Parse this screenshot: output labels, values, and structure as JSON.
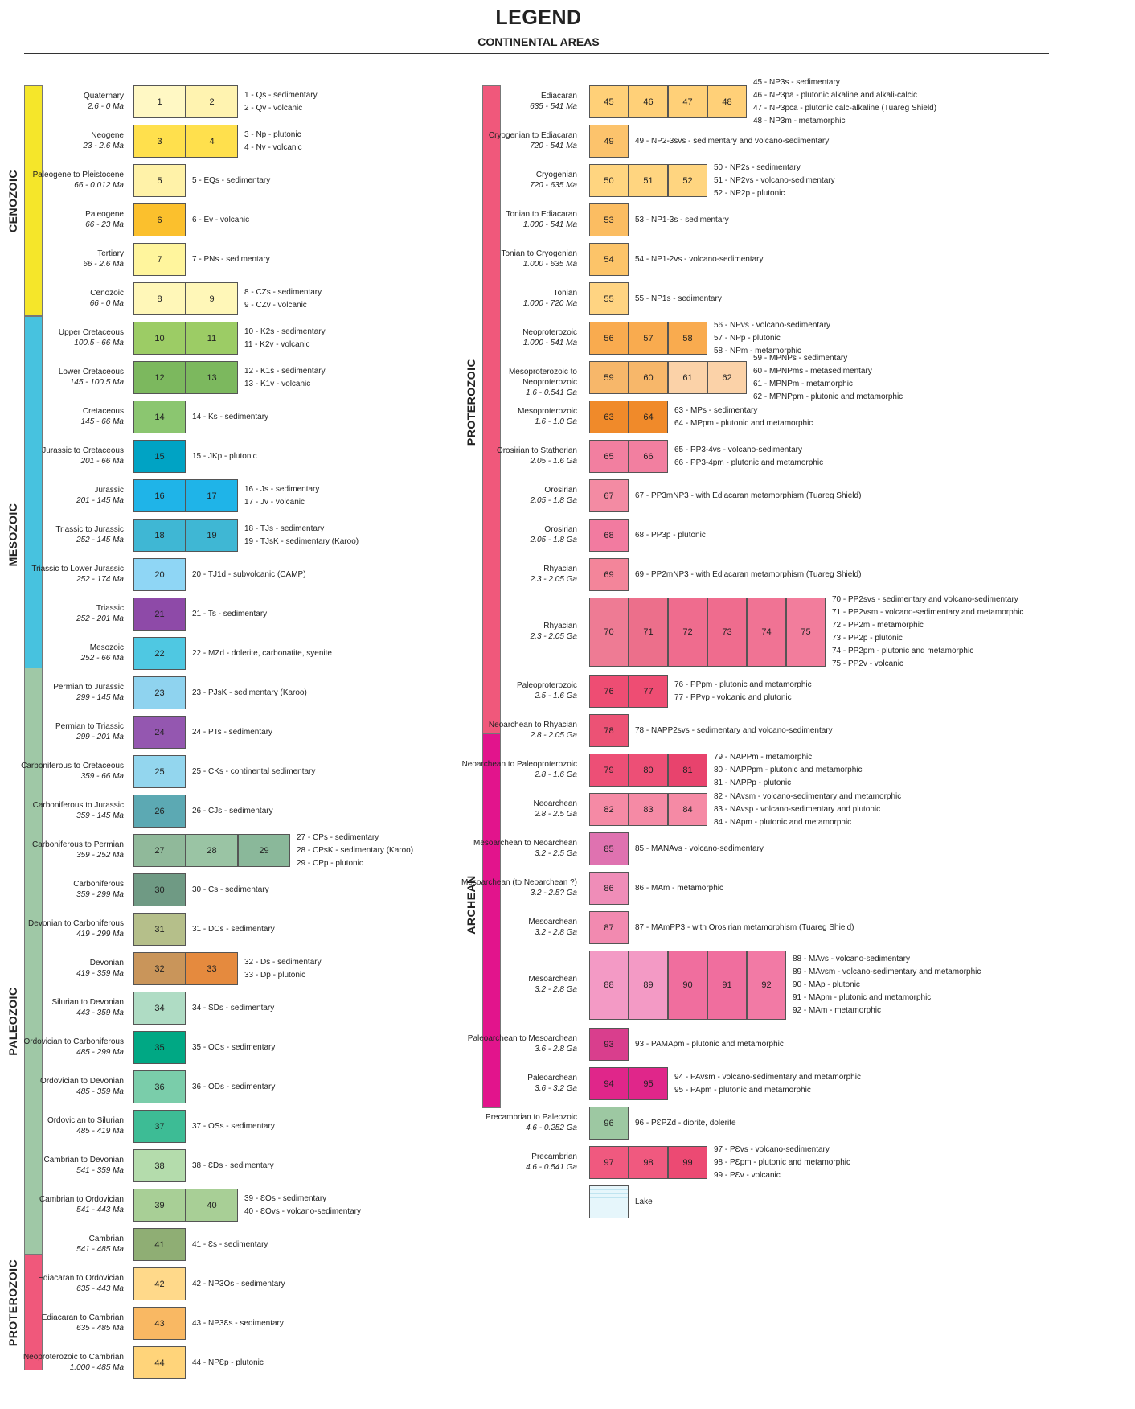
{
  "header": {
    "title": "LEGEND",
    "subtitle": "CONTINENTAL AREAS"
  },
  "eras": {
    "cenozoic": "CENOZOIC",
    "mesozoic": "MESOZOIC",
    "paleozoic": "PALEOZOIC",
    "proterozoic_left": "PROTEROZOIC",
    "proterozoic_right": "PROTEROZOIC",
    "archean": "ARCHEAN"
  },
  "left": [
    {
      "n": "Quaternary",
      "r": "2.6 - 0 Ma",
      "boxes": [
        "1",
        "2"
      ],
      "colors": [
        "#fff8c4",
        "#fff3b0"
      ],
      "desc": [
        "1 - Qs - sedimentary",
        "2 - Qv - volcanic"
      ]
    },
    {
      "n": "Neogene",
      "r": "23 - 2.6 Ma",
      "boxes": [
        "3",
        "4"
      ],
      "colors": [
        "#ffe04d",
        "#ffe04d"
      ],
      "desc": [
        "3 - Np - plutonic",
        "4 - Nv - volcanic"
      ]
    },
    {
      "n": "Paleogene to Pleistocene",
      "r": "66 - 0.012 Ma",
      "boxes": [
        "5"
      ],
      "colors": [
        "#fff2a8"
      ],
      "desc": [
        "5 - EQs - sedimentary"
      ]
    },
    {
      "n": "Paleogene",
      "r": "66 - 23 Ma",
      "boxes": [
        "6"
      ],
      "colors": [
        "#fbc02d"
      ],
      "desc": [
        "6 - Ev - volcanic"
      ]
    },
    {
      "n": "Tertiary",
      "r": "66 - 2.6 Ma",
      "boxes": [
        "7"
      ],
      "colors": [
        "#fff59d"
      ],
      "desc": [
        "7 - PNs - sedimentary"
      ]
    },
    {
      "n": "Cenozoic",
      "r": "66 - 0 Ma",
      "boxes": [
        "8",
        "9"
      ],
      "colors": [
        "#fff7b8",
        "#fff7b8"
      ],
      "desc": [
        "8 - CZs - sedimentary",
        "9 - CZv - volcanic"
      ]
    },
    {
      "n": "Upper Cretaceous",
      "r": "100.5 - 66 Ma",
      "boxes": [
        "10",
        "11"
      ],
      "colors": [
        "#9ccc65",
        "#9ccc65"
      ],
      "desc": [
        "10 - K2s - sedimentary",
        "11 - K2v - volcanic"
      ]
    },
    {
      "n": "Lower Cretaceous",
      "r": "145 - 100.5 Ma",
      "boxes": [
        "12",
        "13"
      ],
      "colors": [
        "#7cb85e",
        "#7cb85e"
      ],
      "desc": [
        "12 - K1s - sedimentary",
        "13 - K1v - volcanic"
      ]
    },
    {
      "n": "Cretaceous",
      "r": "145 - 66 Ma",
      "boxes": [
        "14"
      ],
      "colors": [
        "#8bc670"
      ],
      "desc": [
        "14 - Ks - sedimentary"
      ]
    },
    {
      "n": "Jurassic to Cretaceous",
      "r": "201 - 66 Ma",
      "boxes": [
        "15"
      ],
      "colors": [
        "#00a3c4"
      ],
      "desc": [
        "15 - JKp - plutonic"
      ]
    },
    {
      "n": "Jurassic",
      "r": "201 - 145 Ma",
      "boxes": [
        "16",
        "17"
      ],
      "colors": [
        "#1fb4e8",
        "#1fb4e8"
      ],
      "desc": [
        "16 - Js - sedimentary",
        "17 - Jv - volcanic"
      ]
    },
    {
      "n": "Triassic to Jurassic",
      "r": "252 - 145 Ma",
      "boxes": [
        "18",
        "19"
      ],
      "colors": [
        "#3fb7d4",
        "#3fb7d4"
      ],
      "desc": [
        "18 - TJs - sedimentary",
        "19 - TJsK - sedimentary (Karoo)"
      ]
    },
    {
      "n": "Triassic to Lower Jurassic",
      "r": "252 - 174 Ma",
      "boxes": [
        "20"
      ],
      "colors": [
        "#8fd6f5"
      ],
      "desc": [
        "20 - TJ1d - subvolcanic (CAMP)"
      ]
    },
    {
      "n": "Triassic",
      "r": "252 - 201 Ma",
      "boxes": [
        "21"
      ],
      "colors": [
        "#8e4aa8"
      ],
      "desc": [
        "21 - Ts - sedimentary"
      ]
    },
    {
      "n": "Mesozoic",
      "r": "252 - 66 Ma",
      "boxes": [
        "22"
      ],
      "colors": [
        "#4fc8e2"
      ],
      "desc": [
        "22 - MZd - dolerite, carbonatite, syenite"
      ]
    },
    {
      "n": "Permian to Jurassic",
      "r": "299 - 145 Ma",
      "boxes": [
        "23"
      ],
      "colors": [
        "#8fd3ef"
      ],
      "desc": [
        "23 - PJsK - sedimentary (Karoo)"
      ]
    },
    {
      "n": "Permian to Triassic",
      "r": "299 - 201 Ma",
      "boxes": [
        "24"
      ],
      "colors": [
        "#9457b0"
      ],
      "desc": [
        "24 - PTs - sedimentary"
      ]
    },
    {
      "n": "Carboniferous to Cretaceous",
      "r": "359 - 66 Ma",
      "boxes": [
        "25"
      ],
      "colors": [
        "#93d6ee"
      ],
      "desc": [
        "25 - CKs - continental sedimentary"
      ]
    },
    {
      "n": "Carboniferous to Jurassic",
      "r": "359 - 145 Ma",
      "boxes": [
        "26"
      ],
      "colors": [
        "#5ca9b3"
      ],
      "desc": [
        "26 - CJs - sedimentary"
      ]
    },
    {
      "n": "Carboniferous to Permian",
      "r": "359 - 252 Ma",
      "boxes": [
        "27",
        "28",
        "29"
      ],
      "colors": [
        "#90b99a",
        "#9ac4a4",
        "#8ab89a"
      ],
      "desc": [
        "27 - CPs - sedimentary",
        "28 - CPsK - sedimentary (Karoo)",
        "29 - CPp - plutonic"
      ]
    },
    {
      "n": "Carboniferous",
      "r": "359 - 299 Ma",
      "boxes": [
        "30"
      ],
      "colors": [
        "#6f9a84"
      ],
      "desc": [
        "30 - Cs - sedimentary"
      ]
    },
    {
      "n": "Devonian to Carboniferous",
      "r": "419 - 299 Ma",
      "boxes": [
        "31"
      ],
      "colors": [
        "#b5bf8a"
      ],
      "desc": [
        "31 - DCs - sedimentary"
      ]
    },
    {
      "n": "Devonian",
      "r": "419 - 359 Ma",
      "boxes": [
        "32",
        "33"
      ],
      "colors": [
        "#c9955a",
        "#e58a3e"
      ],
      "desc": [
        "32 - Ds - sedimentary",
        "33 - Dp - plutonic"
      ]
    },
    {
      "n": "Silurian to Devonian",
      "r": "443 - 359 Ma",
      "boxes": [
        "34"
      ],
      "colors": [
        "#afdcc4"
      ],
      "desc": [
        "34 - SDs - sedimentary"
      ]
    },
    {
      "n": "Ordovician to Carboniferous",
      "r": "485 - 299 Ma",
      "boxes": [
        "35"
      ],
      "colors": [
        "#00a884"
      ],
      "desc": [
        "35 - OCs - sedimentary"
      ]
    },
    {
      "n": "Ordovician to Devonian",
      "r": "485 - 359 Ma",
      "boxes": [
        "36"
      ],
      "colors": [
        "#7acdaa"
      ],
      "desc": [
        "36 - ODs - sedimentary"
      ]
    },
    {
      "n": "Ordovician to Silurian",
      "r": "485 - 419 Ma",
      "boxes": [
        "37"
      ],
      "colors": [
        "#3dbc95"
      ],
      "desc": [
        "37 - OSs - sedimentary"
      ]
    },
    {
      "n": "Cambrian to Devonian",
      "r": "541 - 359 Ma",
      "boxes": [
        "38"
      ],
      "colors": [
        "#b4dcac"
      ],
      "desc": [
        "38 - ƐDs - sedimentary"
      ]
    },
    {
      "n": "Cambrian to Ordovician",
      "r": "541 - 443 Ma",
      "boxes": [
        "39",
        "40"
      ],
      "colors": [
        "#a8cf96",
        "#a8cf96"
      ],
      "desc": [
        "39 - ƐOs - sedimentary",
        "40 - ƐOvs - volcano-sedimentary"
      ]
    },
    {
      "n": "Cambrian",
      "r": "541 - 485 Ma",
      "boxes": [
        "41"
      ],
      "colors": [
        "#8fae74"
      ],
      "desc": [
        "41 - Ɛs - sedimentary"
      ]
    },
    {
      "n": "Ediacaran to Ordovician",
      "r": "635 - 443 Ma",
      "boxes": [
        "42"
      ],
      "colors": [
        "#ffd98a"
      ],
      "desc": [
        "42 - NP3Os - sedimentary"
      ]
    },
    {
      "n": "Ediacaran to Cambrian",
      "r": "635 - 485 Ma",
      "boxes": [
        "43"
      ],
      "colors": [
        "#f9b863"
      ],
      "desc": [
        "43 - NP3Ɛs - sedimentary"
      ]
    },
    {
      "n": "Neoproterozoic to Cambrian",
      "r": "1.000 - 485 Ma",
      "boxes": [
        "44"
      ],
      "colors": [
        "#ffd47a"
      ],
      "desc": [
        "44 - NPƐp - plutonic"
      ]
    }
  ],
  "right": [
    {
      "n": "Ediacaran",
      "r": "635 - 541 Ma",
      "boxes": [
        "45",
        "46",
        "47",
        "48"
      ],
      "colors": [
        "#ffd078",
        "#ffd078",
        "#ffd078",
        "#ffd078"
      ],
      "desc": [
        "45 - NP3s - sedimentary",
        "46 - NP3pa - plutonic alkaline and alkali-calcic",
        "47 - NP3pca - plutonic calc-alkaline (Tuareg Shield)",
        "48 - NP3m - metamorphic"
      ]
    },
    {
      "n": "Cryogenian to Ediacaran",
      "r": "720 - 541 Ma",
      "boxes": [
        "49"
      ],
      "colors": [
        "#fcc36c"
      ],
      "desc": [
        "49 - NP2-3svs - sedimentary and volcano-sedimentary"
      ]
    },
    {
      "n": "Cryogenian",
      "r": "720 - 635 Ma",
      "boxes": [
        "50",
        "51",
        "52"
      ],
      "colors": [
        "#ffd580",
        "#ffd580",
        "#ffd580"
      ],
      "desc": [
        "50 - NP2s - sedimentary",
        "51 - NP2vs - volcano-sedimentary",
        "52 - NP2p - plutonic"
      ]
    },
    {
      "n": "Tonian to Ediacaran",
      "r": "1.000 - 541 Ma",
      "boxes": [
        "53"
      ],
      "colors": [
        "#fbbd62"
      ],
      "desc": [
        "53 - NP1-3s - sedimentary"
      ]
    },
    {
      "n": "Tonian to Cryogenian",
      "r": "1.000 - 635 Ma",
      "boxes": [
        "54"
      ],
      "colors": [
        "#fcc469"
      ],
      "desc": [
        "54 - NP1-2vs - volcano-sedimentary"
      ]
    },
    {
      "n": "Tonian",
      "r": "1.000 - 720 Ma",
      "boxes": [
        "55"
      ],
      "colors": [
        "#ffd482"
      ],
      "desc": [
        "55 - NP1s - sedimentary"
      ]
    },
    {
      "n": "Neoproterozoic",
      "r": "1.000 - 541 Ma",
      "boxes": [
        "56",
        "57",
        "58"
      ],
      "colors": [
        "#f9ab4f",
        "#f9ab4f",
        "#f9ab4f"
      ],
      "desc": [
        "56 - NPvs - volcano-sedimentary",
        "57 - NPp - plutonic",
        "58 - NPm - metamorphic"
      ]
    },
    {
      "n": "Mesoproterozoic to Neoproterozoic",
      "r": "1.6 - 0.541 Ga",
      "boxes": [
        "59",
        "60",
        "61",
        "62"
      ],
      "colors": [
        "#f7b76a",
        "#f7b76a",
        "#fbd2a8",
        "#fbd2a8"
      ],
      "desc": [
        "59 - MPNPs - sedimentary",
        "60 - MPNPms - metasedimentary",
        "61 - MPNPm - metamorphic",
        "62 - MPNPpm - plutonic and metamorphic"
      ]
    },
    {
      "n": "Mesoproterozoic",
      "r": "1.6 - 1.0 Ga",
      "boxes": [
        "63",
        "64"
      ],
      "colors": [
        "#f08a2a",
        "#f08a2a"
      ],
      "desc": [
        "63 - MPs - sedimentary",
        "64 - MPpm - plutonic and metamorphic"
      ]
    },
    {
      "n": "Orosirian to Statherian",
      "r": "2.05 - 1.6 Ga",
      "boxes": [
        "65",
        "66"
      ],
      "colors": [
        "#f27fa0",
        "#f27fa0"
      ],
      "desc": [
        "65 - PP3-4vs - volcano-sedimentary",
        "66 - PP3-4pm - plutonic and metamorphic"
      ]
    },
    {
      "n": "Orosirian",
      "r": "2.05 - 1.8 Ga",
      "boxes": [
        "67"
      ],
      "colors": [
        "#f38ba3"
      ],
      "desc": [
        "67 - PP3mNP3 - with Ediacaran metamorphism (Tuareg Shield)"
      ]
    },
    {
      "n": "Orosirian",
      "r": "2.05 - 1.8 Ga",
      "boxes": [
        "68"
      ],
      "colors": [
        "#f27ba0"
      ],
      "desc": [
        "68 - PP3p - plutonic"
      ]
    },
    {
      "n": "Rhyacian",
      "r": "2.3 - 2.05 Ga",
      "boxes": [
        "69"
      ],
      "colors": [
        "#f3859a"
      ],
      "desc": [
        "69 - PP2mNP3 - with Ediacaran metamorphism (Tuareg Shield)"
      ]
    },
    {
      "n": "Rhyacian",
      "r": "2.3 - 2.05 Ga",
      "tall": true,
      "boxes": [
        "70",
        "71",
        "72",
        "73",
        "74",
        "75"
      ],
      "colors": [
        "#ee7b94",
        "#ec6f8b",
        "#ef6c8e",
        "#ef6c8e",
        "#f07394",
        "#f27d9c"
      ],
      "desc": [
        "70 - PP2svs - sedimentary and volcano-sedimentary",
        "71 - PP2vsm - volcano-sedimentary and metamorphic",
        "72 - PP2m - metamorphic",
        "73 - PP2p - plutonic",
        "74 - PP2pm - plutonic and metamorphic",
        "75 - PP2v - volcanic"
      ]
    },
    {
      "n": "Paleoproterozoic",
      "r": "2.5 - 1.6 Ga",
      "boxes": [
        "76",
        "77"
      ],
      "colors": [
        "#ee4d73",
        "#ee4d73"
      ],
      "desc": [
        "76 - PPpm - plutonic and metamorphic",
        "77 - PPvp - volcanic and plutonic"
      ]
    },
    {
      "n": "Neoarchean to Rhyacian",
      "r": "2.8 - 2.05 Ga",
      "boxes": [
        "78"
      ],
      "colors": [
        "#ec5275"
      ],
      "desc": [
        "78 - NAPP2svs - sedimentary and volcano-sedimentary"
      ]
    },
    {
      "n": "Neoarchean to Paleoproterozoic",
      "r": "2.8 - 1.6 Ga",
      "boxes": [
        "79",
        "80",
        "81"
      ],
      "colors": [
        "#ed4f76",
        "#ed4f76",
        "#e8436d"
      ],
      "desc": [
        "79 - NAPPm - metamorphic",
        "80 - NAPPpm - plutonic and metamorphic",
        "81 - NAPPp - plutonic"
      ]
    },
    {
      "n": "Neoarchean",
      "r": "2.8 - 2.5 Ga",
      "boxes": [
        "82",
        "83",
        "84"
      ],
      "colors": [
        "#f58aa5",
        "#f58aa5",
        "#f58aa5"
      ],
      "desc": [
        "82 - NAvsm - volcano-sedimentary and metamorphic",
        "83 - NAvsp - volcano-sedimentary and plutonic",
        "84 - NApm - plutonic and metamorphic"
      ]
    },
    {
      "n": "Mesoarchean to Neoarchean",
      "r": "3.2 - 2.5 Ga",
      "boxes": [
        "85"
      ],
      "colors": [
        "#df72b0"
      ],
      "desc": [
        "85 - MANAvs - volcano-sedimentary"
      ]
    },
    {
      "n": "Mesoarchean (to Neoarchean ?)",
      "r": "3.2 - 2.5? Ga",
      "boxes": [
        "86"
      ],
      "colors": [
        "#ef8db8"
      ],
      "desc": [
        "86 - MAm - metamorphic"
      ]
    },
    {
      "n": "Mesoarchean",
      "r": "3.2 - 2.8 Ga",
      "boxes": [
        "87"
      ],
      "colors": [
        "#f28ab0"
      ],
      "desc": [
        "87 - MAmPP3 - with Orosirian metamorphism (Tuareg Shield)"
      ]
    },
    {
      "n": "Mesoarchean",
      "r": "3.2 - 2.8 Ga",
      "tall": true,
      "boxes": [
        "88",
        "89",
        "90",
        "91",
        "92"
      ],
      "colors": [
        "#f39ac5",
        "#f39ac5",
        "#f06e9e",
        "#f06e9e",
        "#f27aa5"
      ],
      "desc": [
        "88 - MAvs - volcano-sedimentary",
        "89 - MAvsm - volcano-sedimentary and metamorphic",
        "90 - MAp - plutonic",
        "91 - MApm - plutonic and metamorphic",
        "92 - MAm - metamorphic"
      ]
    },
    {
      "n": "Paleoarchean to Mesoarchean",
      "r": "3.6 - 2.8 Ga",
      "boxes": [
        "93"
      ],
      "colors": [
        "#d93e8d"
      ],
      "desc": [
        "93 - PAMApm - plutonic and metamorphic"
      ]
    },
    {
      "n": "Paleoarchean",
      "r": "3.6 - 3.2 Ga",
      "boxes": [
        "94",
        "95"
      ],
      "colors": [
        "#e0268a",
        "#e0268a"
      ],
      "desc": [
        "94 - PAvsm - volcano-sedimentary and metamorphic",
        "95 - PApm - plutonic and metamorphic"
      ]
    },
    {
      "n": "Precambrian to Paleozoic",
      "r": "4.6 - 0.252 Ga",
      "boxes": [
        "96"
      ],
      "colors": [
        "#9dc8a2"
      ],
      "desc": [
        "96 - PƐPZd - diorite, dolerite"
      ]
    },
    {
      "n": "Precambrian",
      "r": "4.6 - 0.541 Ga",
      "boxes": [
        "97",
        "98",
        "99"
      ],
      "colors": [
        "#f0597f",
        "#f0597f",
        "#ec4a73"
      ],
      "desc": [
        "97 - PƐvs - volcano-sedimentary",
        "98 - PƐpm - plutonic and metamorphic",
        "99 - PƐv - volcanic"
      ]
    },
    {
      "n": "",
      "r": "",
      "boxes": [
        ""
      ],
      "colors": [
        "#e6f6fb"
      ],
      "desc": [
        "Lake"
      ]
    }
  ]
}
